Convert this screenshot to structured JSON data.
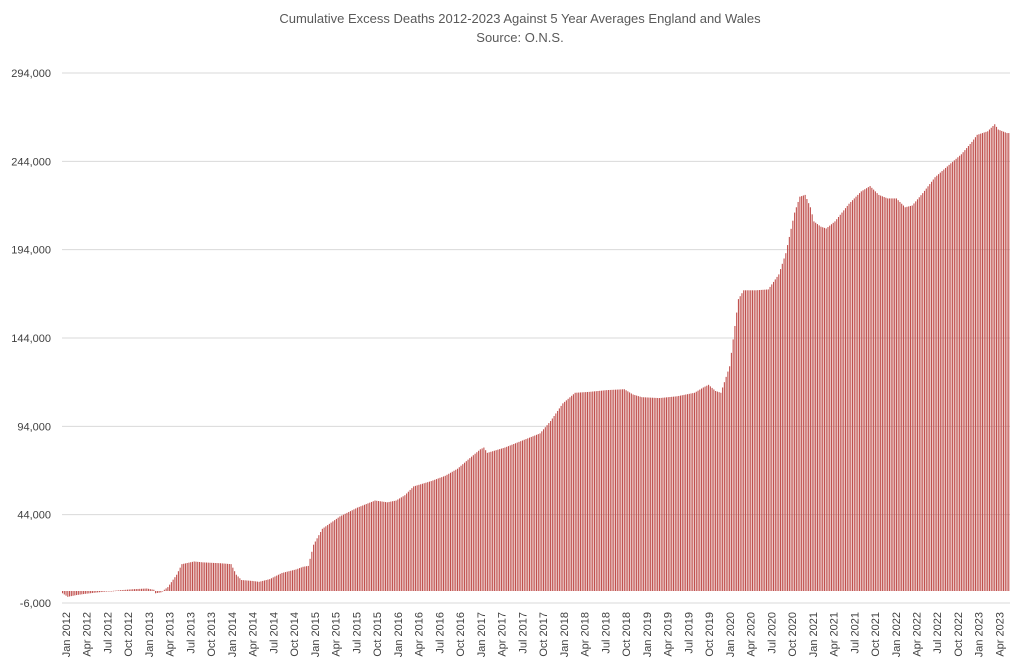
{
  "chart_data": {
    "type": "bar",
    "title": "Cumulative Excess Deaths 2012-2023 Against 5 Year Averages England and Wales",
    "subtitle": "Source: O.N.S.",
    "xlabel": "",
    "ylabel": "",
    "ylim": [
      -6000,
      294000
    ],
    "y_ticks": [
      "-6,000",
      "44,000",
      "94,000",
      "144,000",
      "194,000",
      "244,000",
      "294,000"
    ],
    "grid": true,
    "legend": "none",
    "bar_color": "#C0504D",
    "x_tick_labels": [
      "Jan 2012",
      "Apr 2012",
      "Jul 2012",
      "Oct 2012",
      "Jan 2013",
      "Apr 2013",
      "Jul 2013",
      "Oct 2013",
      "Jan 2014",
      "Apr 2014",
      "Jul 2014",
      "Oct 2014",
      "Jan 2015",
      "Apr 2015",
      "Jul 2015",
      "Oct 2015",
      "Jan 2016",
      "Apr 2016",
      "Jul 2016",
      "Oct 2016",
      "Jan 2017",
      "Apr 2017",
      "Jul 2017",
      "Oct 2017",
      "Jan 2018",
      "Apr 2018",
      "Jul 2018",
      "Oct 2018",
      "Jan 2019",
      "Apr 2019",
      "Jul 2019",
      "Oct 2019",
      "Jan 2020",
      "Apr 2020",
      "Jul 2020",
      "Oct 2020",
      "Jan 2021",
      "Apr 2021",
      "Jul 2021",
      "Oct 2021",
      "Jan 2022",
      "Apr 2022",
      "Jul 2022",
      "Oct 2022",
      "Jan 2023",
      "Apr 2023"
    ],
    "series": [
      {
        "keypoints_week_value": [
          [
            0,
            -500
          ],
          [
            3,
            -2500
          ],
          [
            8,
            -1500
          ],
          [
            13,
            -800
          ],
          [
            20,
            0
          ],
          [
            30,
            1000
          ],
          [
            40,
            1800
          ],
          [
            48,
            2200
          ],
          [
            52,
            1500
          ],
          [
            53,
            -500
          ],
          [
            56,
            0
          ],
          [
            60,
            3000
          ],
          [
            65,
            10000
          ],
          [
            68,
            16000
          ],
          [
            75,
            17500
          ],
          [
            80,
            17000
          ],
          [
            90,
            16500
          ],
          [
            96,
            16000
          ],
          [
            99,
            10000
          ],
          [
            102,
            7000
          ],
          [
            108,
            6500
          ],
          [
            112,
            6000
          ],
          [
            118,
            7500
          ],
          [
            125,
            11000
          ],
          [
            133,
            13000
          ],
          [
            137,
            14500
          ],
          [
            140,
            15000
          ],
          [
            143,
            27000
          ],
          [
            148,
            36000
          ],
          [
            158,
            43000
          ],
          [
            168,
            48000
          ],
          [
            178,
            52000
          ],
          [
            185,
            51000
          ],
          [
            190,
            52000
          ],
          [
            195,
            55000
          ],
          [
            200,
            60000
          ],
          [
            210,
            63000
          ],
          [
            218,
            66000
          ],
          [
            225,
            70000
          ],
          [
            232,
            76000
          ],
          [
            238,
            81000
          ],
          [
            240,
            82000
          ],
          [
            242,
            79000
          ],
          [
            252,
            82000
          ],
          [
            262,
            86000
          ],
          [
            272,
            90000
          ],
          [
            278,
            97000
          ],
          [
            285,
            107000
          ],
          [
            292,
            113000
          ],
          [
            300,
            113500
          ],
          [
            310,
            114500
          ],
          [
            320,
            115000
          ],
          [
            325,
            112000
          ],
          [
            330,
            110500
          ],
          [
            340,
            110000
          ],
          [
            350,
            111000
          ],
          [
            360,
            113000
          ],
          [
            365,
            116000
          ],
          [
            368,
            117500
          ],
          [
            372,
            114000
          ],
          [
            375,
            113000
          ],
          [
            380,
            128000
          ],
          [
            385,
            166000
          ],
          [
            388,
            171000
          ],
          [
            395,
            171000
          ],
          [
            402,
            171500
          ],
          [
            408,
            180000
          ],
          [
            412,
            192000
          ],
          [
            417,
            215000
          ],
          [
            420,
            224000
          ],
          [
            423,
            225000
          ],
          [
            426,
            218000
          ],
          [
            428,
            210000
          ],
          [
            432,
            207000
          ],
          [
            435,
            206000
          ],
          [
            440,
            210000
          ],
          [
            448,
            220000
          ],
          [
            455,
            227000
          ],
          [
            460,
            230000
          ],
          [
            465,
            225000
          ],
          [
            470,
            223000
          ],
          [
            475,
            223000
          ],
          [
            480,
            218000
          ],
          [
            484,
            219000
          ],
          [
            490,
            226000
          ],
          [
            497,
            235000
          ],
          [
            505,
            242000
          ],
          [
            512,
            248000
          ],
          [
            518,
            255000
          ],
          [
            521,
            259000
          ],
          [
            527,
            261000
          ],
          [
            531,
            265000
          ],
          [
            533,
            262000
          ],
          [
            538,
            260000
          ]
        ]
      }
    ],
    "bar_count": 540
  }
}
